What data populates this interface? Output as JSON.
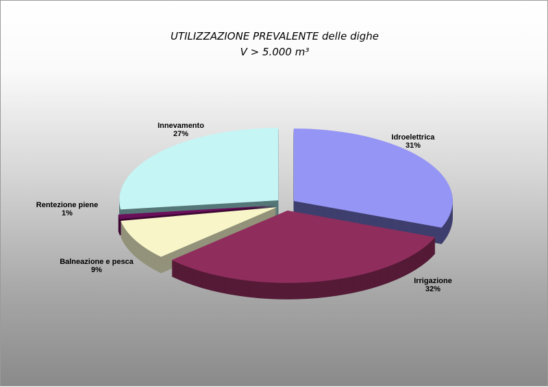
{
  "chart_data": {
    "type": "pie",
    "title": "UTILIZZAZIONE PREVALENTE delle dighe",
    "subtitle": "V > 5.000 m³",
    "three_d": true,
    "exploded": true,
    "slices": [
      {
        "label": "Idroelettrica",
        "value": 31,
        "value_label": "31%",
        "color": "#9595f5",
        "side_color": "#3f3f6e"
      },
      {
        "label": "Irrigazione",
        "value": 32,
        "value_label": "32%",
        "color": "#8f2d5c",
        "side_color": "#541a36"
      },
      {
        "label": "Balneazione e pesca",
        "value": 9,
        "value_label": "9%",
        "color": "#f8f6c8",
        "side_color": "#93927a"
      },
      {
        "label": "Rentezione piene",
        "value": 1,
        "value_label": "1%",
        "color": "#6a0f5a",
        "side_color": "#3d0734"
      },
      {
        "label": "Innevamento",
        "value": 27,
        "value_label": "27%",
        "color": "#c6f5f5",
        "side_color": "#557777"
      }
    ]
  }
}
